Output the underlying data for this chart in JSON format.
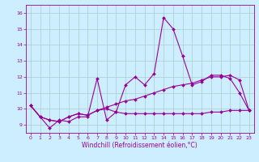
{
  "xlabel": "Windchill (Refroidissement éolien,°C)",
  "bg_color": "#cceeff",
  "grid_color": "#aacccc",
  "line_color": "#990099",
  "xlim": [
    -0.5,
    23.5
  ],
  "ylim": [
    8.5,
    16.5
  ],
  "yticks": [
    9,
    10,
    11,
    12,
    13,
    14,
    15,
    16
  ],
  "xticks": [
    0,
    1,
    2,
    3,
    4,
    5,
    6,
    7,
    8,
    9,
    10,
    11,
    12,
    13,
    14,
    15,
    16,
    17,
    18,
    19,
    20,
    21,
    22,
    23
  ],
  "line1_x": [
    0,
    1,
    2,
    3,
    4,
    5,
    6,
    7,
    8,
    9,
    10,
    11,
    12,
    13,
    14,
    15,
    16,
    17,
    18,
    19,
    20,
    21,
    22,
    23
  ],
  "line1_y": [
    10.2,
    9.5,
    8.8,
    9.3,
    9.2,
    9.5,
    9.5,
    11.9,
    9.3,
    9.8,
    11.5,
    12.0,
    11.5,
    12.2,
    15.7,
    15.0,
    13.3,
    11.5,
    11.7,
    12.1,
    12.1,
    11.9,
    11.0,
    9.9
  ],
  "line2_x": [
    0,
    1,
    2,
    3,
    4,
    5,
    6,
    7,
    8,
    9,
    10,
    11,
    12,
    13,
    14,
    15,
    16,
    17,
    18,
    19,
    20,
    21,
    22,
    23
  ],
  "line2_y": [
    10.2,
    9.5,
    9.3,
    9.2,
    9.5,
    9.7,
    9.6,
    9.9,
    10.1,
    10.3,
    10.5,
    10.6,
    10.8,
    11.0,
    11.2,
    11.4,
    11.5,
    11.6,
    11.8,
    12.0,
    12.0,
    12.1,
    11.8,
    9.9
  ],
  "line3_x": [
    0,
    1,
    2,
    3,
    4,
    5,
    6,
    7,
    8,
    9,
    10,
    11,
    12,
    13,
    14,
    15,
    16,
    17,
    18,
    19,
    20,
    21,
    22,
    23
  ],
  "line3_y": [
    10.2,
    9.5,
    9.3,
    9.2,
    9.5,
    9.7,
    9.6,
    9.9,
    10.0,
    9.8,
    9.7,
    9.7,
    9.7,
    9.7,
    9.7,
    9.7,
    9.7,
    9.7,
    9.7,
    9.8,
    9.8,
    9.9,
    9.9,
    9.9
  ],
  "xlabel_fontsize": 5.5,
  "tick_fontsize": 4.5,
  "linewidth": 0.8,
  "markersize": 2.0
}
